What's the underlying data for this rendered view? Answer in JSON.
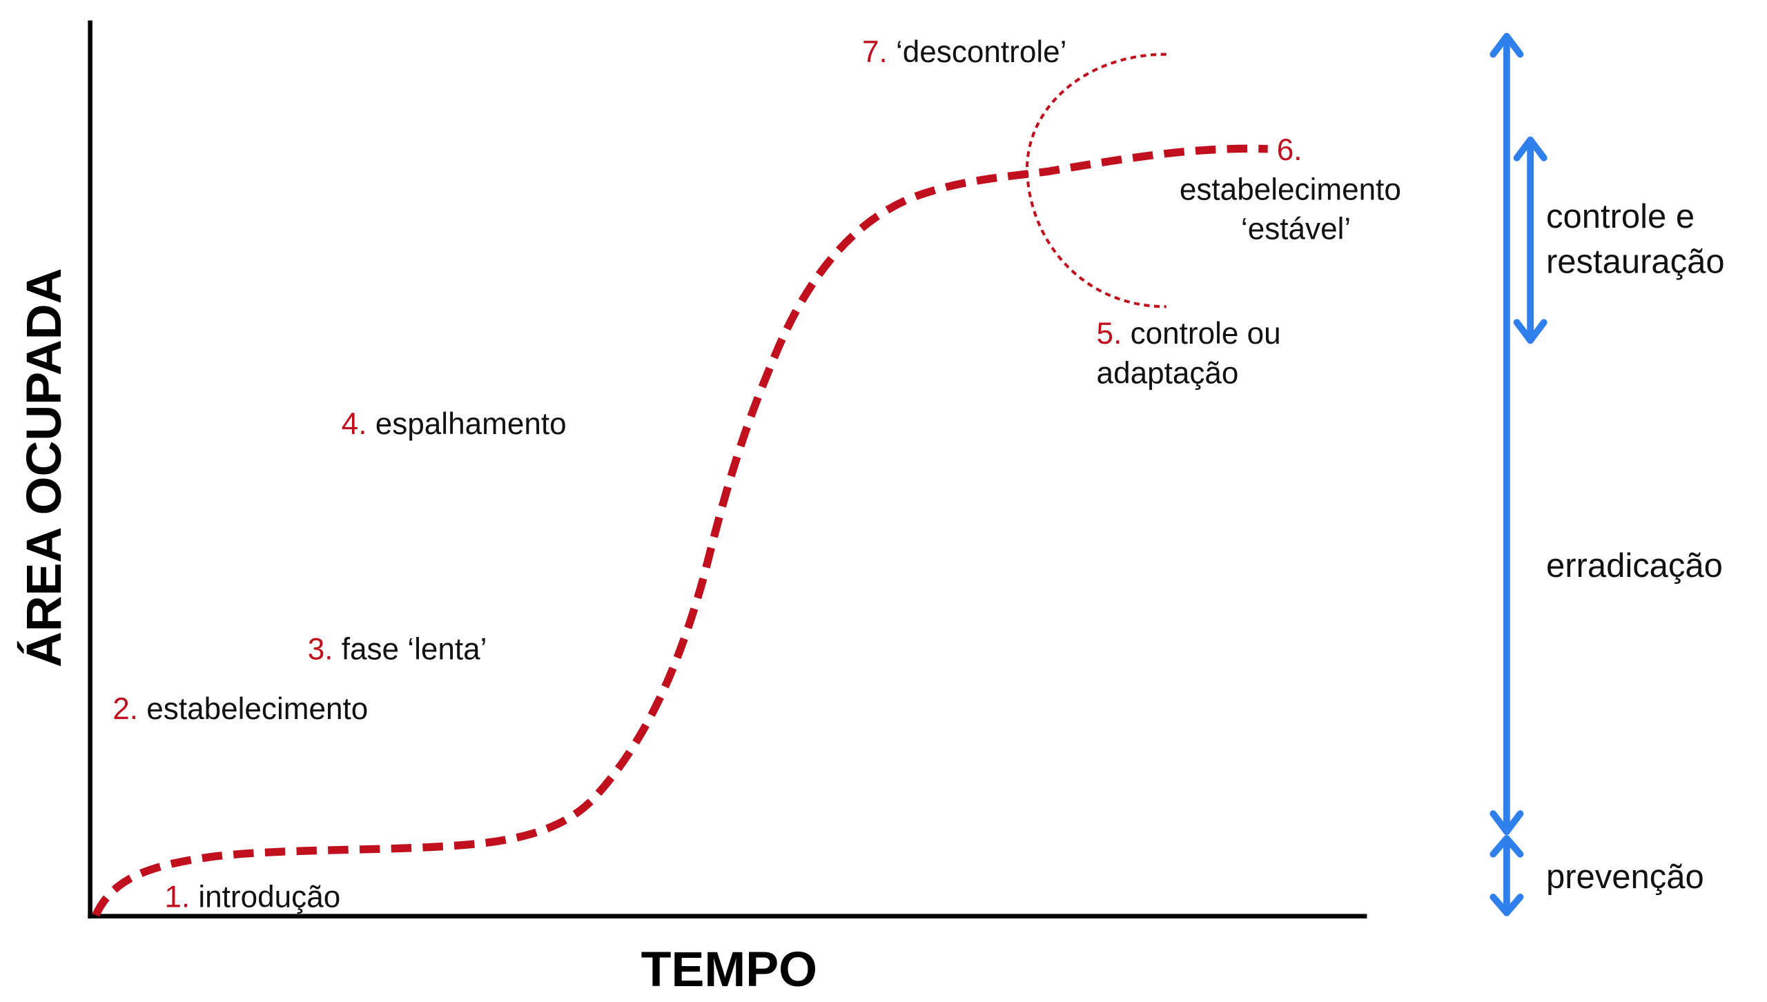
{
  "axes": {
    "x_label": "TEMPO",
    "y_label": "ÁREA OCUPADA"
  },
  "stages": [
    {
      "number": "1.",
      "lines": [
        "introdução"
      ]
    },
    {
      "number": "2.",
      "lines": [
        "estabelecimento"
      ]
    },
    {
      "number": "3.",
      "lines": [
        "fase ‘lenta’"
      ]
    },
    {
      "number": "4.",
      "lines": [
        "espalhamento"
      ]
    },
    {
      "number": "5.",
      "lines": [
        "controle ou",
        "adaptação"
      ]
    },
    {
      "number": "6.",
      "lines": [
        "estabelecimento",
        "‘estável’"
      ]
    },
    {
      "number": "7.",
      "lines": [
        "‘descontrole’"
      ]
    }
  ],
  "management": [
    {
      "lines": [
        "controle e",
        "restauração"
      ]
    },
    {
      "lines": [
        "erradicação"
      ]
    },
    {
      "lines": [
        "prevenção"
      ]
    }
  ]
}
